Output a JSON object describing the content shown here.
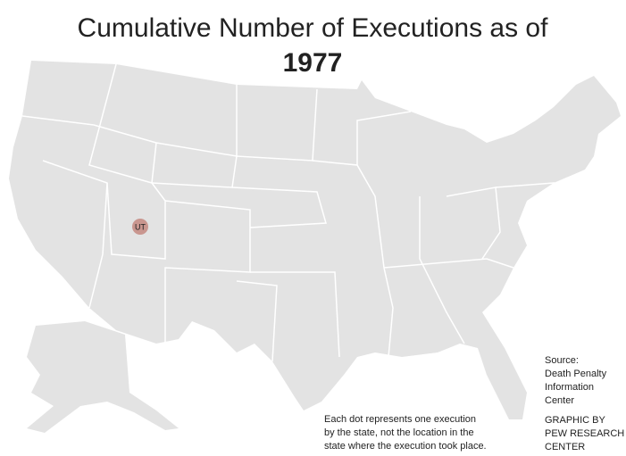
{
  "header": {
    "title": "Cumulative Number of Executions as of",
    "year": "1977"
  },
  "dots": [
    {
      "label": "UT"
    }
  ],
  "note": [
    "Each dot represents one execution",
    "by the state, not the location in the",
    "state where the execution took place."
  ],
  "source": [
    "Source:",
    "Death Penalty",
    "Information",
    "Center"
  ],
  "credit": [
    "GRAPHIC BY",
    "PEW RESEARCH",
    "CENTER"
  ]
}
